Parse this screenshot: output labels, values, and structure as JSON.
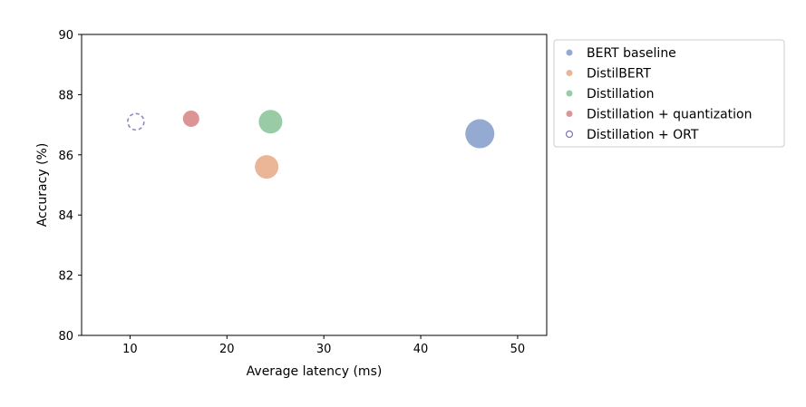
{
  "chart_data": {
    "type": "scatter",
    "title": "",
    "xlabel": "Average latency (ms)",
    "ylabel": "Accuracy (%)",
    "xlim": [
      5,
      53
    ],
    "ylim": [
      80,
      90
    ],
    "x_ticks": [
      10,
      20,
      30,
      40,
      50
    ],
    "y_ticks": [
      80,
      82,
      84,
      86,
      88,
      90
    ],
    "grid": false,
    "legend_position": "outside-right",
    "series": [
      {
        "name": "BERT baseline",
        "x": 46.1,
        "y": 86.7,
        "size": "large",
        "color": "#4c72b0",
        "style": "filled"
      },
      {
        "name": "DistilBERT",
        "x": 24.1,
        "y": 85.6,
        "size": "medium",
        "color": "#dd8452",
        "style": "filled"
      },
      {
        "name": "Distillation",
        "x": 24.5,
        "y": 87.1,
        "size": "medium",
        "color": "#55a868",
        "style": "filled"
      },
      {
        "name": "Distillation + quantization",
        "x": 16.3,
        "y": 87.2,
        "size": "small",
        "color": "#c44e52",
        "style": "filled"
      },
      {
        "name": "Distillation + ORT",
        "x": 10.6,
        "y": 87.1,
        "size": "small",
        "color": "#8172b3",
        "style": "dashed-outline"
      }
    ]
  }
}
